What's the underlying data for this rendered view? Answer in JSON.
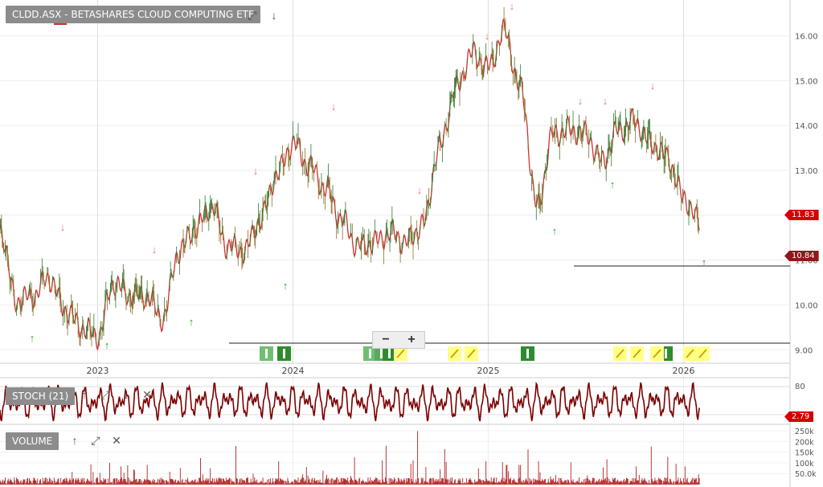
{
  "header": {
    "title": "CLDD.ASX - BETASHARES CLOUD COMPUTING ETF"
  },
  "stoch": {
    "label": "STOCH (21)",
    "value_tag": "2.79",
    "levels": [
      80
    ]
  },
  "volume": {
    "label": "VOLUME",
    "ticks": [
      "250k",
      "200k",
      "150k",
      "100k",
      "50.0k"
    ]
  },
  "price": {
    "tag_last": "11.83",
    "tag_low": "10.84",
    "ticks": [
      "16.00",
      "15.00",
      "14.00",
      "13.00",
      "12.00",
      "11.00",
      "10.00",
      "9.00"
    ]
  },
  "zoom": {
    "minus": "−",
    "plus": "+"
  },
  "icons": {
    "expand": "⤢",
    "down": "↓",
    "up": "↑",
    "close": "✕"
  },
  "colors": {
    "line": "#d32f2f",
    "tag": "#d40000",
    "up": "#22aa22",
    "down": "#e57373",
    "stoch": "#7a0000",
    "volume": "#b22222"
  },
  "chart_data": {
    "type": "line",
    "x_ticks": [
      "2023",
      "2024",
      "2025",
      "2026"
    ],
    "ylim": [
      8.7,
      16.8
    ],
    "series": [
      {
        "x": [
          "2022-07",
          "2022-08",
          "2022-09",
          "2022-10",
          "2022-11",
          "2022-12",
          "2023-01",
          "2023-02",
          "2023-03",
          "2023-04",
          "2023-05",
          "2023-06",
          "2023-07",
          "2023-08",
          "2023-09",
          "2023-10",
          "2023-11",
          "2023-12",
          "2024-01",
          "2024-02",
          "2024-03",
          "2024-04",
          "2024-05",
          "2024-06",
          "2024-07",
          "2024-08",
          "2024-09",
          "2024-10",
          "2024-11",
          "2024-12",
          "2025-01",
          "2025-02",
          "2025-03",
          "2025-04",
          "2025-05",
          "2025-06",
          "2025-07",
          "2025-08",
          "2025-09",
          "2025-10",
          "2025-11",
          "2025-12",
          "2026-01",
          "2026-02"
        ],
        "values": [
          11.7,
          10.1,
          10.2,
          10.6,
          9.9,
          9.5,
          9.3,
          10.5,
          10.2,
          10.2,
          9.7,
          11.2,
          11.7,
          12.2,
          11.3,
          11.2,
          11.9,
          12.9,
          13.6,
          13.1,
          12.6,
          11.9,
          11.3,
          11.4,
          11.6,
          11.4,
          11.8,
          13.5,
          14.8,
          15.6,
          15.3,
          16.1,
          14.8,
          12.2,
          13.8,
          13.9,
          13.8,
          13.2,
          13.9,
          14.1,
          13.6,
          13.3,
          12.4,
          11.83
        ]
      }
    ],
    "volume": {
      "max_tick": "250k"
    },
    "stochastic": {
      "upper": 80,
      "last": 2.79
    }
  }
}
